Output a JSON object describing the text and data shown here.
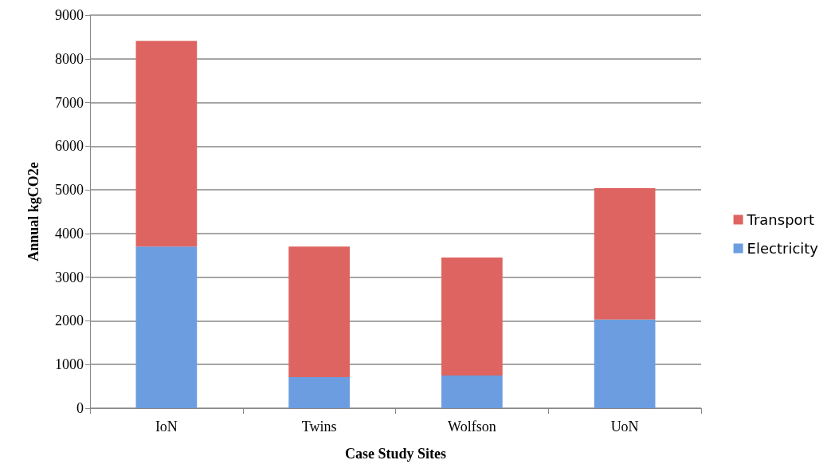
{
  "chart_data": {
    "type": "bar",
    "xlabel": "Case Study Sites",
    "ylabel": "Annual kgCO2e",
    "categories": [
      "IoN",
      "Twins",
      "Wolfson",
      "UoN"
    ],
    "stacked": true,
    "series": [
      {
        "name": "Electricity",
        "color": "#6b9de0",
        "values": [
          3700,
          710,
          750,
          2030
        ]
      },
      {
        "name": "Transport",
        "color": "#de6461",
        "values": [
          4710,
          2990,
          2700,
          3010
        ]
      }
    ],
    "ylim": [
      0,
      9000
    ],
    "yticks": [
      0,
      1000,
      2000,
      3000,
      4000,
      5000,
      6000,
      7000,
      8000,
      9000
    ],
    "grid": "y",
    "legend": "right"
  }
}
